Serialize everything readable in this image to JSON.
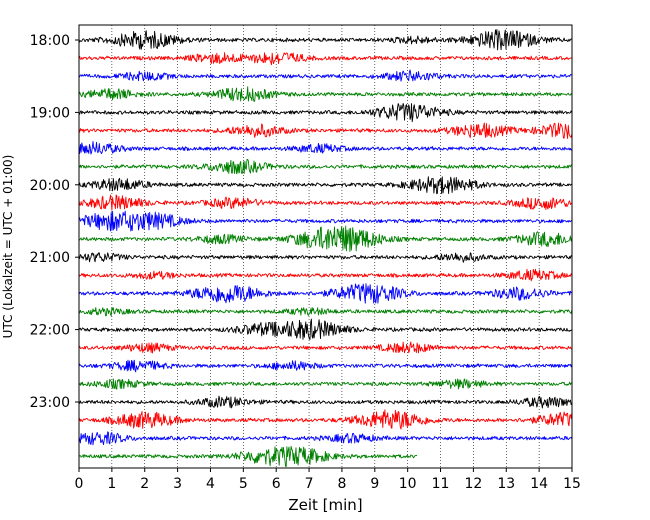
{
  "chart_data": {
    "type": "line",
    "title": "",
    "xlabel": "Zeit  [min]",
    "ylabel": "UTC (Lokalzeit = UTC + 01:00)",
    "xlim": [
      0,
      15
    ],
    "x_ticks": [
      0,
      1,
      2,
      3,
      4,
      5,
      6,
      7,
      8,
      9,
      10,
      11,
      12,
      13,
      14,
      15
    ],
    "y_tick_labels": [
      "18:00",
      "19:00",
      "20:00",
      "21:00",
      "22:00",
      "23:00"
    ],
    "vertical_grid": "dotted",
    "color_cycle": [
      "#000000",
      "#ff0000",
      "#0000ff",
      "#008000"
    ],
    "traces": [
      {
        "start": "18:00",
        "color": "#000000",
        "end_min": 15,
        "events": [
          [
            2,
            0.9
          ],
          [
            12.9,
            1.0
          ],
          [
            10.2,
            0.3
          ]
        ]
      },
      {
        "start": "18:15",
        "color": "#ff0000",
        "end_min": 15,
        "events": [
          [
            4.2,
            0.5
          ],
          [
            6.0,
            0.6
          ]
        ]
      },
      {
        "start": "18:30",
        "color": "#0000ff",
        "end_min": 15,
        "events": [
          [
            2.0,
            0.4
          ],
          [
            10.1,
            0.5
          ]
        ]
      },
      {
        "start": "18:45",
        "color": "#008000",
        "end_min": 15,
        "events": [
          [
            1.0,
            0.5
          ],
          [
            5.0,
            0.7
          ]
        ]
      },
      {
        "start": "19:00",
        "color": "#000000",
        "end_min": 15,
        "events": [
          [
            10.0,
            0.9
          ]
        ]
      },
      {
        "start": "19:15",
        "color": "#ff0000",
        "end_min": 15,
        "events": [
          [
            5.4,
            0.6
          ],
          [
            12.2,
            0.7
          ],
          [
            14.9,
            0.8
          ]
        ]
      },
      {
        "start": "19:30",
        "color": "#0000ff",
        "end_min": 15,
        "events": [
          [
            0.4,
            0.6
          ],
          [
            7.3,
            0.4
          ]
        ]
      },
      {
        "start": "19:45",
        "color": "#008000",
        "end_min": 15,
        "events": [
          [
            4.8,
            0.7
          ]
        ]
      },
      {
        "start": "20:00",
        "color": "#000000",
        "end_min": 15,
        "events": [
          [
            1.2,
            0.6
          ],
          [
            10.7,
            0.6
          ],
          [
            11.5,
            0.5
          ]
        ]
      },
      {
        "start": "20:15",
        "color": "#ff0000",
        "end_min": 15,
        "events": [
          [
            1.1,
            0.7
          ],
          [
            4.7,
            0.5
          ],
          [
            14.1,
            0.6
          ]
        ]
      },
      {
        "start": "20:30",
        "color": "#0000ff",
        "end_min": 15,
        "events": [
          [
            1.0,
            0.9
          ],
          [
            2.3,
            0.7
          ]
        ]
      },
      {
        "start": "20:45",
        "color": "#008000",
        "end_min": 15,
        "events": [
          [
            4.3,
            0.4
          ],
          [
            7.5,
            1.0
          ],
          [
            8.4,
            0.8
          ],
          [
            14.2,
            0.7
          ]
        ]
      },
      {
        "start": "21:00",
        "color": "#000000",
        "end_min": 15,
        "events": [
          [
            0.6,
            0.4
          ],
          [
            11.6,
            0.4
          ]
        ]
      },
      {
        "start": "21:15",
        "color": "#ff0000",
        "end_min": 15,
        "events": [
          [
            2.3,
            0.3
          ],
          [
            13.8,
            0.5
          ]
        ]
      },
      {
        "start": "21:30",
        "color": "#0000ff",
        "end_min": 15,
        "events": [
          [
            4.5,
            1.0
          ],
          [
            8.8,
            1.0
          ],
          [
            13.4,
            0.6
          ]
        ]
      },
      {
        "start": "21:45",
        "color": "#008000",
        "end_min": 15,
        "events": [
          [
            0.8,
            0.3
          ],
          [
            7.0,
            0.3
          ]
        ]
      },
      {
        "start": "22:00",
        "color": "#000000",
        "end_min": 15,
        "events": [
          [
            5.5,
            0.5
          ],
          [
            7.0,
            1.0
          ]
        ]
      },
      {
        "start": "22:15",
        "color": "#ff0000",
        "end_min": 15,
        "events": [
          [
            2.1,
            0.4
          ],
          [
            10.0,
            0.5
          ]
        ]
      },
      {
        "start": "22:30",
        "color": "#0000ff",
        "end_min": 15,
        "events": [
          [
            1.8,
            0.5
          ],
          [
            6.5,
            0.4
          ]
        ]
      },
      {
        "start": "22:45",
        "color": "#008000",
        "end_min": 15,
        "events": [
          [
            1.2,
            0.4
          ],
          [
            11.6,
            0.4
          ]
        ]
      },
      {
        "start": "23:00",
        "color": "#000000",
        "end_min": 15,
        "events": [
          [
            4.4,
            0.5
          ],
          [
            14.2,
            0.5
          ]
        ]
      },
      {
        "start": "23:15",
        "color": "#ff0000",
        "end_min": 15,
        "events": [
          [
            2.0,
            0.8
          ],
          [
            9.5,
            1.0
          ],
          [
            14.8,
            0.7
          ]
        ]
      },
      {
        "start": "23:30",
        "color": "#0000ff",
        "end_min": 15,
        "events": [
          [
            0.6,
            0.6
          ],
          [
            8.3,
            0.4
          ]
        ]
      },
      {
        "start": "23:45",
        "color": "#008000",
        "end_min": 10.3,
        "events": [
          [
            6.6,
            0.9
          ],
          [
            5.5,
            0.5
          ]
        ]
      }
    ]
  }
}
